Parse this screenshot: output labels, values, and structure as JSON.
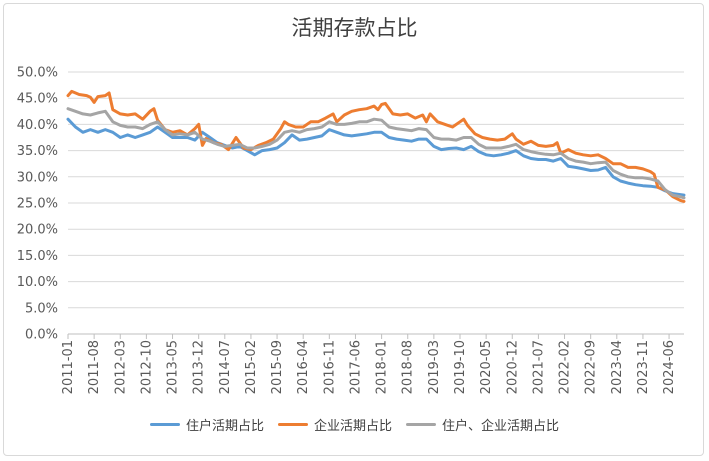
{
  "chart_data": {
    "type": "line",
    "title": "活期存款占比",
    "xlabel": "",
    "ylabel": "",
    "ylim": [
      0,
      0.5
    ],
    "y_ticks": [
      "0.0%",
      "5.0%",
      "10.0%",
      "15.0%",
      "20.0%",
      "25.0%",
      "30.0%",
      "35.0%",
      "40.0%",
      "45.0%",
      "50.0%"
    ],
    "x_ticks": [
      "2011-01",
      "2011-08",
      "2012-03",
      "2012-10",
      "2013-05",
      "2013-12",
      "2014-07",
      "2015-02",
      "2015-09",
      "2016-04",
      "2016-11",
      "2017-06",
      "2018-01",
      "2018-08",
      "2019-03",
      "2019-10",
      "2020-05",
      "2020-12",
      "2021-07",
      "2022-02",
      "2022-09",
      "2023-04",
      "2023-11",
      "2024-06"
    ],
    "x_range": [
      "2011-01",
      "2024-10"
    ],
    "grid": "horizontal",
    "legend_position": "bottom",
    "series": [
      {
        "name": "住户活期占比",
        "color": "#5b9bd5",
        "points": [
          [
            "2011-01",
            0.41
          ],
          [
            "2011-03",
            0.395
          ],
          [
            "2011-05",
            0.385
          ],
          [
            "2011-07",
            0.39
          ],
          [
            "2011-09",
            0.385
          ],
          [
            "2011-11",
            0.39
          ],
          [
            "2012-01",
            0.385
          ],
          [
            "2012-03",
            0.375
          ],
          [
            "2012-05",
            0.38
          ],
          [
            "2012-07",
            0.375
          ],
          [
            "2012-09",
            0.38
          ],
          [
            "2012-11",
            0.385
          ],
          [
            "2013-01",
            0.395
          ],
          [
            "2013-03",
            0.385
          ],
          [
            "2013-05",
            0.375
          ],
          [
            "2013-07",
            0.375
          ],
          [
            "2013-09",
            0.375
          ],
          [
            "2013-11",
            0.37
          ],
          [
            "2014-01",
            0.385
          ],
          [
            "2014-03",
            0.375
          ],
          [
            "2014-05",
            0.365
          ],
          [
            "2014-07",
            0.36
          ],
          [
            "2014-09",
            0.355
          ],
          [
            "2014-11",
            0.358
          ],
          [
            "2015-01",
            0.35
          ],
          [
            "2015-03",
            0.342
          ],
          [
            "2015-05",
            0.35
          ],
          [
            "2015-07",
            0.352
          ],
          [
            "2015-09",
            0.355
          ],
          [
            "2015-11",
            0.365
          ],
          [
            "2016-01",
            0.38
          ],
          [
            "2016-03",
            0.37
          ],
          [
            "2016-05",
            0.372
          ],
          [
            "2016-07",
            0.375
          ],
          [
            "2016-09",
            0.378
          ],
          [
            "2016-11",
            0.39
          ],
          [
            "2017-01",
            0.385
          ],
          [
            "2017-03",
            0.38
          ],
          [
            "2017-05",
            0.378
          ],
          [
            "2017-07",
            0.38
          ],
          [
            "2017-09",
            0.382
          ],
          [
            "2017-11",
            0.385
          ],
          [
            "2018-01",
            0.385
          ],
          [
            "2018-03",
            0.375
          ],
          [
            "2018-05",
            0.372
          ],
          [
            "2018-07",
            0.37
          ],
          [
            "2018-09",
            0.368
          ],
          [
            "2018-11",
            0.372
          ],
          [
            "2019-01",
            0.372
          ],
          [
            "2019-03",
            0.358
          ],
          [
            "2019-05",
            0.352
          ],
          [
            "2019-07",
            0.354
          ],
          [
            "2019-09",
            0.355
          ],
          [
            "2019-11",
            0.352
          ],
          [
            "2020-01",
            0.358
          ],
          [
            "2020-03",
            0.348
          ],
          [
            "2020-05",
            0.342
          ],
          [
            "2020-07",
            0.34
          ],
          [
            "2020-09",
            0.342
          ],
          [
            "2020-11",
            0.345
          ],
          [
            "2021-01",
            0.35
          ],
          [
            "2021-03",
            0.34
          ],
          [
            "2021-05",
            0.335
          ],
          [
            "2021-07",
            0.333
          ],
          [
            "2021-09",
            0.333
          ],
          [
            "2021-11",
            0.33
          ],
          [
            "2022-01",
            0.335
          ],
          [
            "2022-03",
            0.32
          ],
          [
            "2022-05",
            0.318
          ],
          [
            "2022-07",
            0.315
          ],
          [
            "2022-09",
            0.312
          ],
          [
            "2022-11",
            0.313
          ],
          [
            "2023-01",
            0.318
          ],
          [
            "2023-03",
            0.3
          ],
          [
            "2023-05",
            0.292
          ],
          [
            "2023-07",
            0.288
          ],
          [
            "2023-09",
            0.285
          ],
          [
            "2023-11",
            0.283
          ],
          [
            "2024-01",
            0.282
          ],
          [
            "2024-03",
            0.28
          ],
          [
            "2024-05",
            0.273
          ],
          [
            "2024-07",
            0.268
          ],
          [
            "2024-09",
            0.266
          ],
          [
            "2024-10",
            0.265
          ]
        ]
      },
      {
        "name": "企业活期占比",
        "color": "#ed7d31",
        "points": [
          [
            "2011-01",
            0.455
          ],
          [
            "2011-02",
            0.463
          ],
          [
            "2011-04",
            0.457
          ],
          [
            "2011-06",
            0.455
          ],
          [
            "2011-07",
            0.452
          ],
          [
            "2011-08",
            0.442
          ],
          [
            "2011-09",
            0.453
          ],
          [
            "2011-11",
            0.455
          ],
          [
            "2011-12",
            0.46
          ],
          [
            "2012-01",
            0.428
          ],
          [
            "2012-03",
            0.42
          ],
          [
            "2012-05",
            0.418
          ],
          [
            "2012-07",
            0.42
          ],
          [
            "2012-09",
            0.41
          ],
          [
            "2012-11",
            0.425
          ],
          [
            "2012-12",
            0.43
          ],
          [
            "2013-01",
            0.408
          ],
          [
            "2013-03",
            0.39
          ],
          [
            "2013-05",
            0.385
          ],
          [
            "2013-07",
            0.388
          ],
          [
            "2013-09",
            0.38
          ],
          [
            "2013-11",
            0.392
          ],
          [
            "2013-12",
            0.4
          ],
          [
            "2014-01",
            0.36
          ],
          [
            "2014-02",
            0.373
          ],
          [
            "2014-04",
            0.365
          ],
          [
            "2014-06",
            0.362
          ],
          [
            "2014-08",
            0.352
          ],
          [
            "2014-10",
            0.375
          ],
          [
            "2014-12",
            0.355
          ],
          [
            "2015-02",
            0.352
          ],
          [
            "2015-04",
            0.36
          ],
          [
            "2015-06",
            0.365
          ],
          [
            "2015-08",
            0.372
          ],
          [
            "2015-10",
            0.392
          ],
          [
            "2015-11",
            0.405
          ],
          [
            "2015-12",
            0.4
          ],
          [
            "2016-02",
            0.395
          ],
          [
            "2016-04",
            0.395
          ],
          [
            "2016-06",
            0.405
          ],
          [
            "2016-08",
            0.405
          ],
          [
            "2016-10",
            0.412
          ],
          [
            "2016-12",
            0.42
          ],
          [
            "2017-01",
            0.405
          ],
          [
            "2017-03",
            0.418
          ],
          [
            "2017-05",
            0.425
          ],
          [
            "2017-07",
            0.428
          ],
          [
            "2017-09",
            0.43
          ],
          [
            "2017-11",
            0.435
          ],
          [
            "2017-12",
            0.428
          ],
          [
            "2018-01",
            0.438
          ],
          [
            "2018-02",
            0.44
          ],
          [
            "2018-04",
            0.42
          ],
          [
            "2018-06",
            0.418
          ],
          [
            "2018-08",
            0.42
          ],
          [
            "2018-10",
            0.412
          ],
          [
            "2018-12",
            0.418
          ],
          [
            "2019-01",
            0.405
          ],
          [
            "2019-02",
            0.42
          ],
          [
            "2019-04",
            0.405
          ],
          [
            "2019-06",
            0.4
          ],
          [
            "2019-08",
            0.395
          ],
          [
            "2019-10",
            0.405
          ],
          [
            "2019-11",
            0.41
          ],
          [
            "2019-12",
            0.398
          ],
          [
            "2020-02",
            0.382
          ],
          [
            "2020-04",
            0.375
          ],
          [
            "2020-06",
            0.372
          ],
          [
            "2020-08",
            0.37
          ],
          [
            "2020-10",
            0.372
          ],
          [
            "2020-12",
            0.382
          ],
          [
            "2021-01",
            0.372
          ],
          [
            "2021-03",
            0.362
          ],
          [
            "2021-05",
            0.368
          ],
          [
            "2021-07",
            0.36
          ],
          [
            "2021-09",
            0.358
          ],
          [
            "2021-11",
            0.36
          ],
          [
            "2021-12",
            0.365
          ],
          [
            "2022-01",
            0.345
          ],
          [
            "2022-03",
            0.352
          ],
          [
            "2022-05",
            0.345
          ],
          [
            "2022-07",
            0.342
          ],
          [
            "2022-09",
            0.34
          ],
          [
            "2022-11",
            0.342
          ],
          [
            "2023-01",
            0.335
          ],
          [
            "2023-03",
            0.325
          ],
          [
            "2023-05",
            0.325
          ],
          [
            "2023-07",
            0.318
          ],
          [
            "2023-09",
            0.318
          ],
          [
            "2023-11",
            0.315
          ],
          [
            "2024-01",
            0.31
          ],
          [
            "2024-02",
            0.305
          ],
          [
            "2024-03",
            0.28
          ],
          [
            "2024-05",
            0.275
          ],
          [
            "2024-07",
            0.262
          ],
          [
            "2024-09",
            0.255
          ],
          [
            "2024-10",
            0.253
          ]
        ]
      },
      {
        "name": "住户、企业活期占比",
        "color": "#a5a5a5",
        "points": [
          [
            "2011-01",
            0.43
          ],
          [
            "2011-03",
            0.425
          ],
          [
            "2011-05",
            0.42
          ],
          [
            "2011-07",
            0.418
          ],
          [
            "2011-09",
            0.422
          ],
          [
            "2011-11",
            0.425
          ],
          [
            "2012-01",
            0.405
          ],
          [
            "2012-03",
            0.398
          ],
          [
            "2012-05",
            0.395
          ],
          [
            "2012-07",
            0.395
          ],
          [
            "2012-09",
            0.392
          ],
          [
            "2012-11",
            0.4
          ],
          [
            "2013-01",
            0.405
          ],
          [
            "2013-03",
            0.39
          ],
          [
            "2013-05",
            0.38
          ],
          [
            "2013-07",
            0.382
          ],
          [
            "2013-09",
            0.38
          ],
          [
            "2013-11",
            0.385
          ],
          [
            "2014-01",
            0.372
          ],
          [
            "2014-03",
            0.368
          ],
          [
            "2014-05",
            0.362
          ],
          [
            "2014-07",
            0.358
          ],
          [
            "2014-09",
            0.36
          ],
          [
            "2014-11",
            0.362
          ],
          [
            "2015-01",
            0.355
          ],
          [
            "2015-03",
            0.355
          ],
          [
            "2015-05",
            0.358
          ],
          [
            "2015-07",
            0.362
          ],
          [
            "2015-09",
            0.37
          ],
          [
            "2015-11",
            0.385
          ],
          [
            "2016-01",
            0.388
          ],
          [
            "2016-03",
            0.385
          ],
          [
            "2016-05",
            0.39
          ],
          [
            "2016-07",
            0.392
          ],
          [
            "2016-09",
            0.395
          ],
          [
            "2016-11",
            0.405
          ],
          [
            "2017-01",
            0.4
          ],
          [
            "2017-03",
            0.4
          ],
          [
            "2017-05",
            0.402
          ],
          [
            "2017-07",
            0.405
          ],
          [
            "2017-09",
            0.405
          ],
          [
            "2017-11",
            0.41
          ],
          [
            "2018-01",
            0.408
          ],
          [
            "2018-03",
            0.395
          ],
          [
            "2018-05",
            0.392
          ],
          [
            "2018-07",
            0.39
          ],
          [
            "2018-09",
            0.388
          ],
          [
            "2018-11",
            0.392
          ],
          [
            "2019-01",
            0.39
          ],
          [
            "2019-03",
            0.375
          ],
          [
            "2019-05",
            0.372
          ],
          [
            "2019-07",
            0.372
          ],
          [
            "2019-09",
            0.37
          ],
          [
            "2019-11",
            0.375
          ],
          [
            "2020-01",
            0.375
          ],
          [
            "2020-03",
            0.362
          ],
          [
            "2020-05",
            0.355
          ],
          [
            "2020-07",
            0.355
          ],
          [
            "2020-09",
            0.355
          ],
          [
            "2020-11",
            0.358
          ],
          [
            "2021-01",
            0.362
          ],
          [
            "2021-03",
            0.352
          ],
          [
            "2021-05",
            0.348
          ],
          [
            "2021-07",
            0.345
          ],
          [
            "2021-09",
            0.343
          ],
          [
            "2021-11",
            0.342
          ],
          [
            "2022-01",
            0.345
          ],
          [
            "2022-03",
            0.335
          ],
          [
            "2022-05",
            0.33
          ],
          [
            "2022-07",
            0.328
          ],
          [
            "2022-09",
            0.325
          ],
          [
            "2022-11",
            0.327
          ],
          [
            "2023-01",
            0.328
          ],
          [
            "2023-03",
            0.312
          ],
          [
            "2023-05",
            0.305
          ],
          [
            "2023-07",
            0.3
          ],
          [
            "2023-09",
            0.298
          ],
          [
            "2023-11",
            0.298
          ],
          [
            "2024-01",
            0.296
          ],
          [
            "2024-03",
            0.292
          ],
          [
            "2024-05",
            0.275
          ],
          [
            "2024-07",
            0.265
          ],
          [
            "2024-09",
            0.262
          ],
          [
            "2024-10",
            0.26
          ]
        ]
      }
    ]
  }
}
